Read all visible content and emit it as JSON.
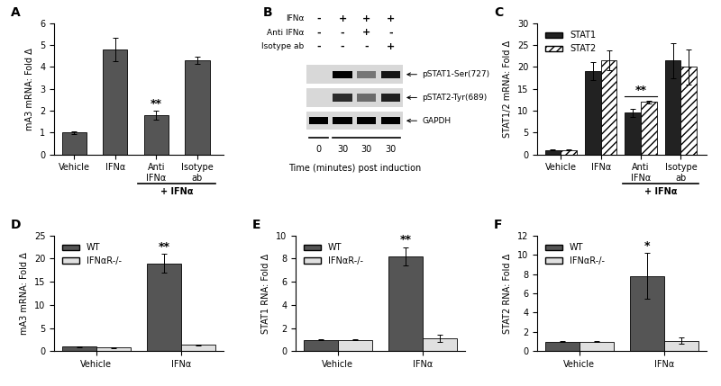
{
  "chart_data": [
    {
      "type": "bar",
      "panel": "A",
      "ylabel": "mA3 mRNA: Fold Δ",
      "categories": [
        "Vehicle",
        "IFNα",
        "Anti\nIFNα",
        "Isotype\nab"
      ],
      "values": [
        1,
        4.8,
        1.8,
        4.3
      ],
      "errors": [
        0.05,
        0.55,
        0.2,
        0.15
      ],
      "color": "#555555",
      "ylim": [
        0,
        6
      ],
      "yticks": [
        0,
        1,
        2,
        3,
        4,
        5,
        6
      ],
      "grid": false,
      "annotations": [
        {
          "category": "Anti\nIFNα",
          "text": "**"
        }
      ],
      "group_label": {
        "text": "+ IFNα",
        "from": "Anti\nIFNα",
        "to": "Isotype\nab"
      }
    },
    {
      "type": "blot",
      "panel": "B",
      "treatments": [
        {
          "name": "IFNα",
          "lanes": [
            "-",
            "+",
            "+",
            "+"
          ]
        },
        {
          "name": "Anti IFNα",
          "lanes": [
            "-",
            "-",
            "+",
            "-"
          ]
        },
        {
          "name": "Isotype ab",
          "lanes": [
            "-",
            "-",
            "-",
            "+"
          ]
        }
      ],
      "bands": [
        {
          "name": "pSTAT1-Ser(727)",
          "signal": [
            0,
            1,
            0.45,
            0.9
          ]
        },
        {
          "name": "pSTAT2-Tyr(689)",
          "signal": [
            0,
            0.8,
            0.5,
            0.85
          ]
        },
        {
          "name": "GAPDH",
          "signal": [
            1,
            1,
            1,
            1
          ]
        }
      ],
      "time_labels": [
        0,
        30,
        30,
        30
      ],
      "xlabel": "Time (minutes) post induction"
    },
    {
      "type": "bar",
      "panel": "C",
      "ylabel": "STAT1/2 mRNA: Fold Δ",
      "categories": [
        "Vehicle",
        "IFNα",
        "Anti\nIFNα",
        "Isotype\nab"
      ],
      "series": [
        {
          "name": "STAT1",
          "color": "#222222",
          "values": [
            1,
            19,
            9.5,
            21.5
          ],
          "errors": [
            0.1,
            2,
            1,
            4
          ]
        },
        {
          "name": "STAT2",
          "color": "#ffffff",
          "values": [
            1,
            21.5,
            12,
            20
          ],
          "errors": [
            0.1,
            2.3,
            0.3,
            4
          ]
        }
      ],
      "ylim": [
        0,
        30
      ],
      "yticks": [
        0,
        5,
        10,
        15,
        20,
        25,
        30
      ],
      "grid": false,
      "legend": "upper left",
      "annotations": [
        {
          "category": "Anti\nIFNα",
          "text": "**"
        }
      ],
      "group_label": {
        "text": "+ IFNα",
        "from": "Anti\nIFNα",
        "to": "Isotype\nab"
      }
    },
    {
      "type": "bar",
      "panel": "D",
      "ylabel": "mA3 mRNA: Fold Δ",
      "categories": [
        "Vehicle",
        "IFNα"
      ],
      "series": [
        {
          "name": "WT",
          "color": "#555555",
          "values": [
            1,
            19
          ],
          "errors": [
            0.1,
            2
          ]
        },
        {
          "name": "IFNαR-/-",
          "color": "#e0e0e0",
          "values": [
            0.8,
            1.4
          ],
          "errors": [
            0.1,
            0.1
          ]
        }
      ],
      "ylim": [
        0,
        25
      ],
      "yticks": [
        0,
        5,
        10,
        15,
        20,
        25
      ],
      "grid": false,
      "legend": "upper left",
      "annotations": [
        {
          "category": "IFNα",
          "series": "WT",
          "text": "**"
        }
      ]
    },
    {
      "type": "bar",
      "panel": "E",
      "ylabel": "STAT1 RNA: Fold Δ",
      "categories": [
        "Vehicle",
        "IFNα"
      ],
      "series": [
        {
          "name": "WT",
          "color": "#555555",
          "values": [
            1,
            8.2
          ],
          "errors": [
            0.05,
            0.8
          ]
        },
        {
          "name": "IFNαR-/-",
          "color": "#e0e0e0",
          "values": [
            1,
            1.1
          ],
          "errors": [
            0.05,
            0.3
          ]
        }
      ],
      "ylim": [
        0,
        10
      ],
      "yticks": [
        0,
        2,
        4,
        6,
        8,
        10
      ],
      "grid": false,
      "legend": "upper left",
      "annotations": [
        {
          "category": "IFNα",
          "series": "WT",
          "text": "**"
        }
      ]
    },
    {
      "type": "bar",
      "panel": "F",
      "ylabel": "STAT2 RNA: Fold Δ",
      "categories": [
        "Vehicle",
        "IFNα"
      ],
      "series": [
        {
          "name": "WT",
          "color": "#555555",
          "values": [
            1,
            7.8
          ],
          "errors": [
            0.05,
            2.4
          ]
        },
        {
          "name": "IFNαR-/-",
          "color": "#e0e0e0",
          "values": [
            1,
            1.1
          ],
          "errors": [
            0.05,
            0.3
          ]
        }
      ],
      "ylim": [
        0,
        12
      ],
      "yticks": [
        0,
        2,
        4,
        6,
        8,
        10,
        12
      ],
      "grid": false,
      "legend": "upper left",
      "annotations": [
        {
          "category": "IFNα",
          "series": "WT",
          "text": "*"
        }
      ]
    }
  ]
}
